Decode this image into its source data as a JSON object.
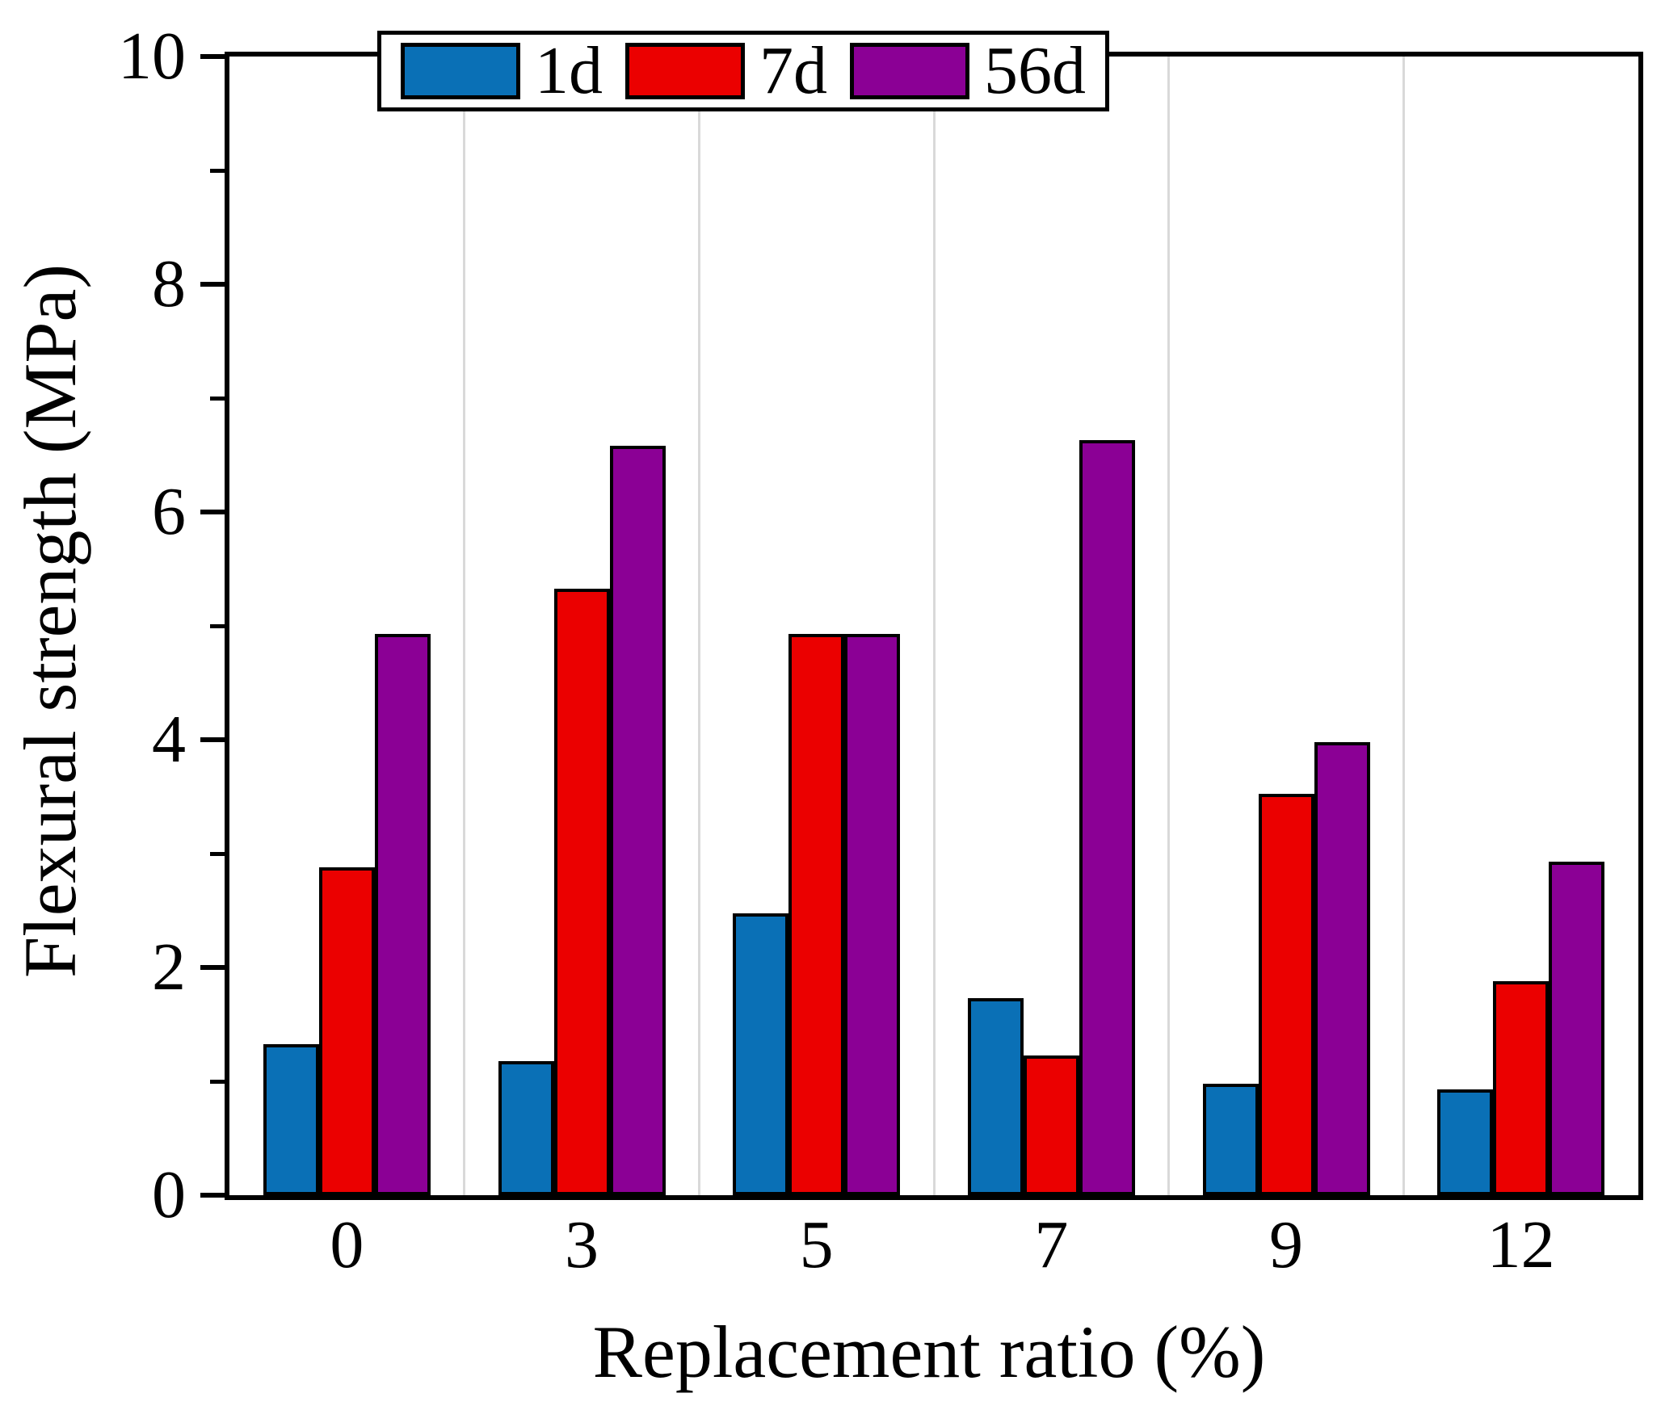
{
  "chart_data": {
    "type": "bar",
    "title": "",
    "xlabel": "Replacement ratio (%)",
    "ylabel": "Flexural strength (MPa)",
    "categories": [
      "0",
      "3",
      "5",
      "7",
      "9",
      "12"
    ],
    "series": [
      {
        "name": "1d",
        "color": "#0A70B6",
        "values": [
          1.3,
          1.15,
          2.45,
          1.7,
          0.95,
          0.9
        ]
      },
      {
        "name": "7d",
        "color": "#EB0000",
        "values": [
          2.85,
          5.3,
          4.9,
          1.2,
          3.5,
          1.85
        ]
      },
      {
        "name": "56d",
        "color": "#8B0095",
        "values": [
          4.9,
          6.55,
          4.9,
          6.6,
          3.95,
          2.9
        ]
      }
    ],
    "ylim": [
      0,
      10
    ],
    "y_major_ticks": [
      0,
      2,
      4,
      6,
      8,
      10
    ],
    "y_minor_ticks": [
      1,
      3,
      5,
      7,
      9
    ],
    "grid": "vertical category separators only",
    "legend_position": "top-center",
    "bar_edge_color": "#000000"
  }
}
